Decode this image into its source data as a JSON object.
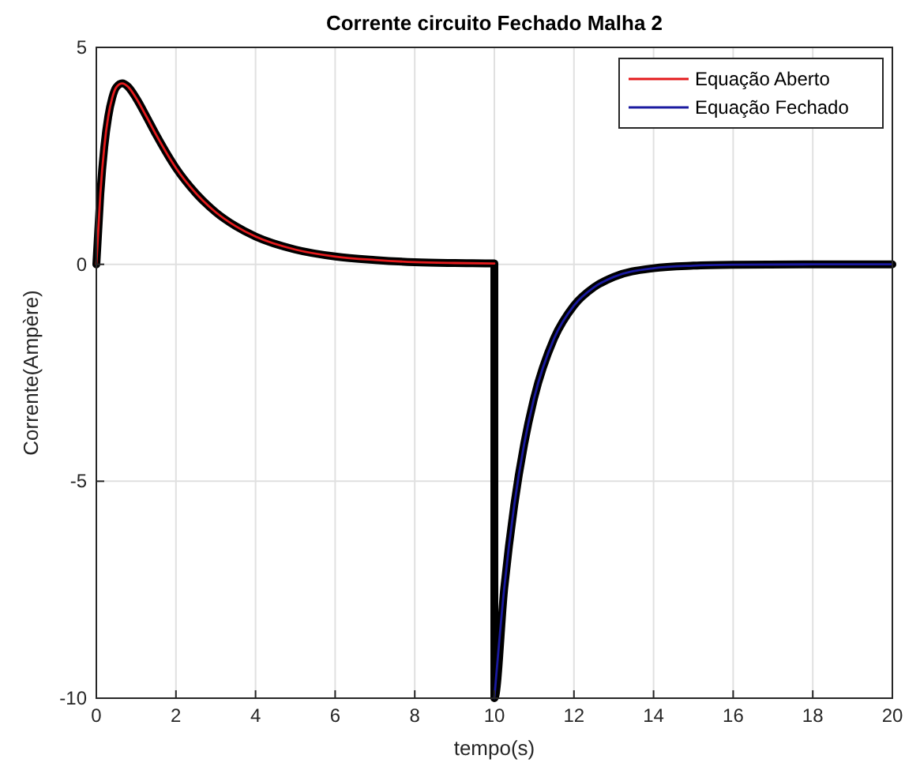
{
  "chart_data": {
    "type": "line",
    "title": "Corrente circuito Fechado Malha 2",
    "xlabel": "tempo(s)",
    "ylabel": "Corrente(Ampère)",
    "xlim": [
      0,
      20
    ],
    "ylim": [
      -10,
      5
    ],
    "xticks": [
      0,
      2,
      4,
      6,
      8,
      10,
      12,
      14,
      16,
      18,
      20
    ],
    "yticks": [
      -10,
      -5,
      0,
      5
    ],
    "grid": true,
    "legend": "top right",
    "line_style": "solid",
    "marker": "none",
    "series": [
      {
        "color": "#000000",
        "x": [
          0,
          0.1,
          0.2,
          0.3,
          0.4,
          0.5,
          0.65,
          0.8,
          1,
          1.25,
          1.5,
          2,
          2.5,
          3,
          3.5,
          4,
          5,
          6,
          7,
          8,
          9,
          10,
          10,
          10.25,
          10.5,
          10.75,
          11,
          11.5,
          12,
          12.5,
          13,
          14,
          15,
          16,
          18,
          20
        ],
        "values": [
          0,
          1.62,
          2.71,
          3.41,
          3.84,
          4.08,
          4.17,
          4.09,
          3.83,
          3.42,
          2.99,
          2.22,
          1.64,
          1.2,
          0.88,
          0.64,
          0.34,
          0.18,
          0.1,
          0.05,
          0.03,
          0.02,
          -10,
          -7.45,
          -5.55,
          -4.14,
          -3.08,
          -1.71,
          -0.95,
          -0.53,
          -0.29,
          -0.09,
          -0.03,
          -0.01,
          0,
          0
        ]
      },
      {
        "name": "Equação Aberto",
        "color": "#e41a1c",
        "x": [
          0,
          0.1,
          0.2,
          0.3,
          0.4,
          0.5,
          0.65,
          0.8,
          1,
          1.25,
          1.5,
          2,
          2.5,
          3,
          3.5,
          4,
          5,
          6,
          7,
          8,
          9,
          10
        ],
        "values": [
          0,
          1.62,
          2.71,
          3.41,
          3.84,
          4.08,
          4.17,
          4.09,
          3.83,
          3.42,
          2.99,
          2.22,
          1.64,
          1.2,
          0.88,
          0.64,
          0.34,
          0.18,
          0.1,
          0.05,
          0.03,
          0.02
        ]
      },
      {
        "name": "Equação Fechado",
        "color": "#1a1aa0",
        "x": [
          10,
          10.25,
          10.5,
          10.75,
          11,
          11.5,
          12,
          12.5,
          13,
          14,
          15,
          16,
          18,
          20
        ],
        "values": [
          -10,
          -7.45,
          -5.55,
          -4.14,
          -3.08,
          -1.71,
          -0.95,
          -0.53,
          -0.29,
          -0.09,
          -0.03,
          -0.01,
          0,
          0
        ]
      }
    ]
  }
}
